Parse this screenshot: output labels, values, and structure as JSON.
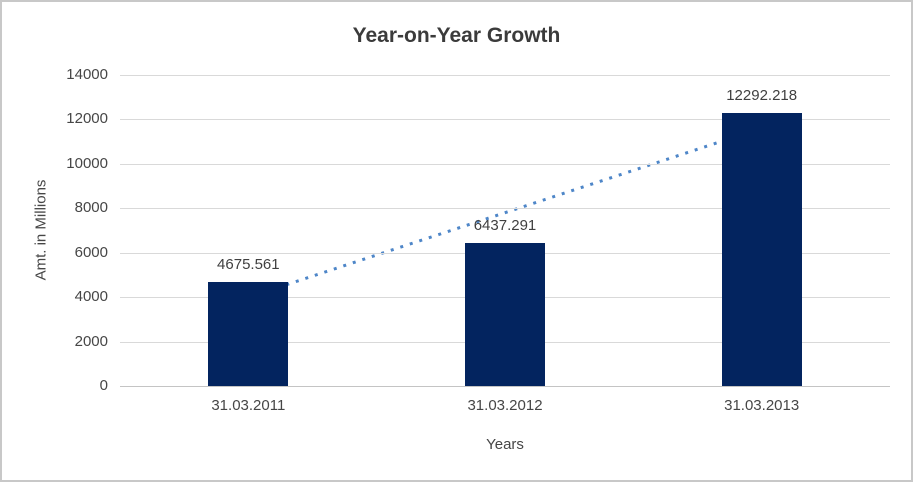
{
  "chart_data": {
    "type": "bar",
    "title": "Year-on-Year Growth",
    "xlabel": "Years",
    "ylabel": "Amt. in Millions",
    "categories": [
      "31.03.2011",
      "31.03.2012",
      "31.03.2013"
    ],
    "values": [
      4675.561,
      6437.291,
      12292.218
    ],
    "data_labels": [
      "4675.561",
      "6437.291",
      "12292.218"
    ],
    "ylim": [
      0,
      14000
    ],
    "yticks": [
      0,
      2000,
      4000,
      6000,
      8000,
      10000,
      12000,
      14000
    ],
    "grid": "horizontal",
    "legend_position": "none",
    "bar_color": "#03245f",
    "trendline": {
      "type": "linear",
      "style": "dotted",
      "color": "#4e86c8",
      "start_value": 3993.4,
      "end_value": 11610.0
    },
    "colors": {
      "gridline": "#d9d9d9",
      "axis_line": "#c4c4c4",
      "tick_text": "#464646",
      "title_text": "#3b3b3b"
    }
  }
}
